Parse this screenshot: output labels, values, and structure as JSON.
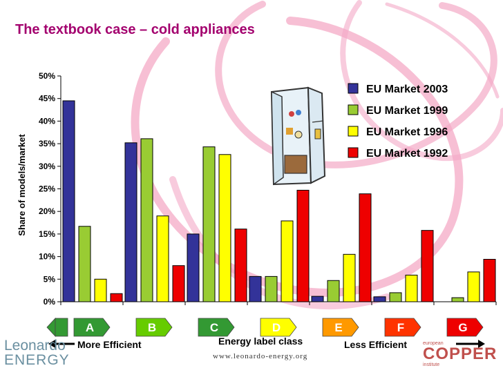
{
  "title": "The textbook case – cold appliances",
  "chart_data": {
    "type": "bar",
    "categories": [
      "A",
      "B",
      "C",
      "D",
      "E",
      "F",
      "G"
    ],
    "ylabel": "Share of models/market",
    "xlabel": "Energy label class",
    "ylim": [
      0,
      50
    ],
    "yticks": [
      "0%",
      "5%",
      "10%",
      "15%",
      "20%",
      "25%",
      "30%",
      "35%",
      "40%",
      "45%",
      "50%"
    ],
    "legend_position": "top-right",
    "series": [
      {
        "name": "EU Market 2003",
        "color": "#333399",
        "values": [
          44.5,
          35.2,
          15.0,
          5.6,
          1.2,
          1.1,
          0.0
        ]
      },
      {
        "name": "EU Market 1999",
        "color": "#99cc33",
        "values": [
          16.7,
          36.1,
          34.3,
          5.6,
          4.7,
          2.0,
          0.9
        ]
      },
      {
        "name": "EU Market 1996",
        "color": "#ffff00",
        "values": [
          5.0,
          19.0,
          32.6,
          17.9,
          10.5,
          5.9,
          6.6
        ]
      },
      {
        "name": "EU Market 1992",
        "color": "#ee0000",
        "values": [
          1.8,
          8.0,
          16.1,
          24.7,
          23.9,
          15.8,
          9.4
        ]
      }
    ]
  },
  "label_arrows": [
    {
      "letter": "A",
      "color": "#339933"
    },
    {
      "letter": "B",
      "color": "#66cc00"
    },
    {
      "letter": "C",
      "color": "#339933"
    },
    {
      "letter": "D",
      "color": "#ffff00"
    },
    {
      "letter": "E",
      "color": "#ff9900"
    },
    {
      "letter": "F",
      "color": "#ff3300"
    },
    {
      "letter": "G",
      "color": "#ee0000"
    }
  ],
  "footer": {
    "more_efficient": "More Efficient",
    "energy_label": "Energy label class",
    "less_efficient": "Less Efficient",
    "url": "www.leonardo-energy.org"
  },
  "logos": {
    "leonardo_line1": "Leonardo",
    "leonardo_line2": "ENERGY",
    "copper_small": "european",
    "copper_main": "COPPER",
    "copper_sub": "institute"
  }
}
